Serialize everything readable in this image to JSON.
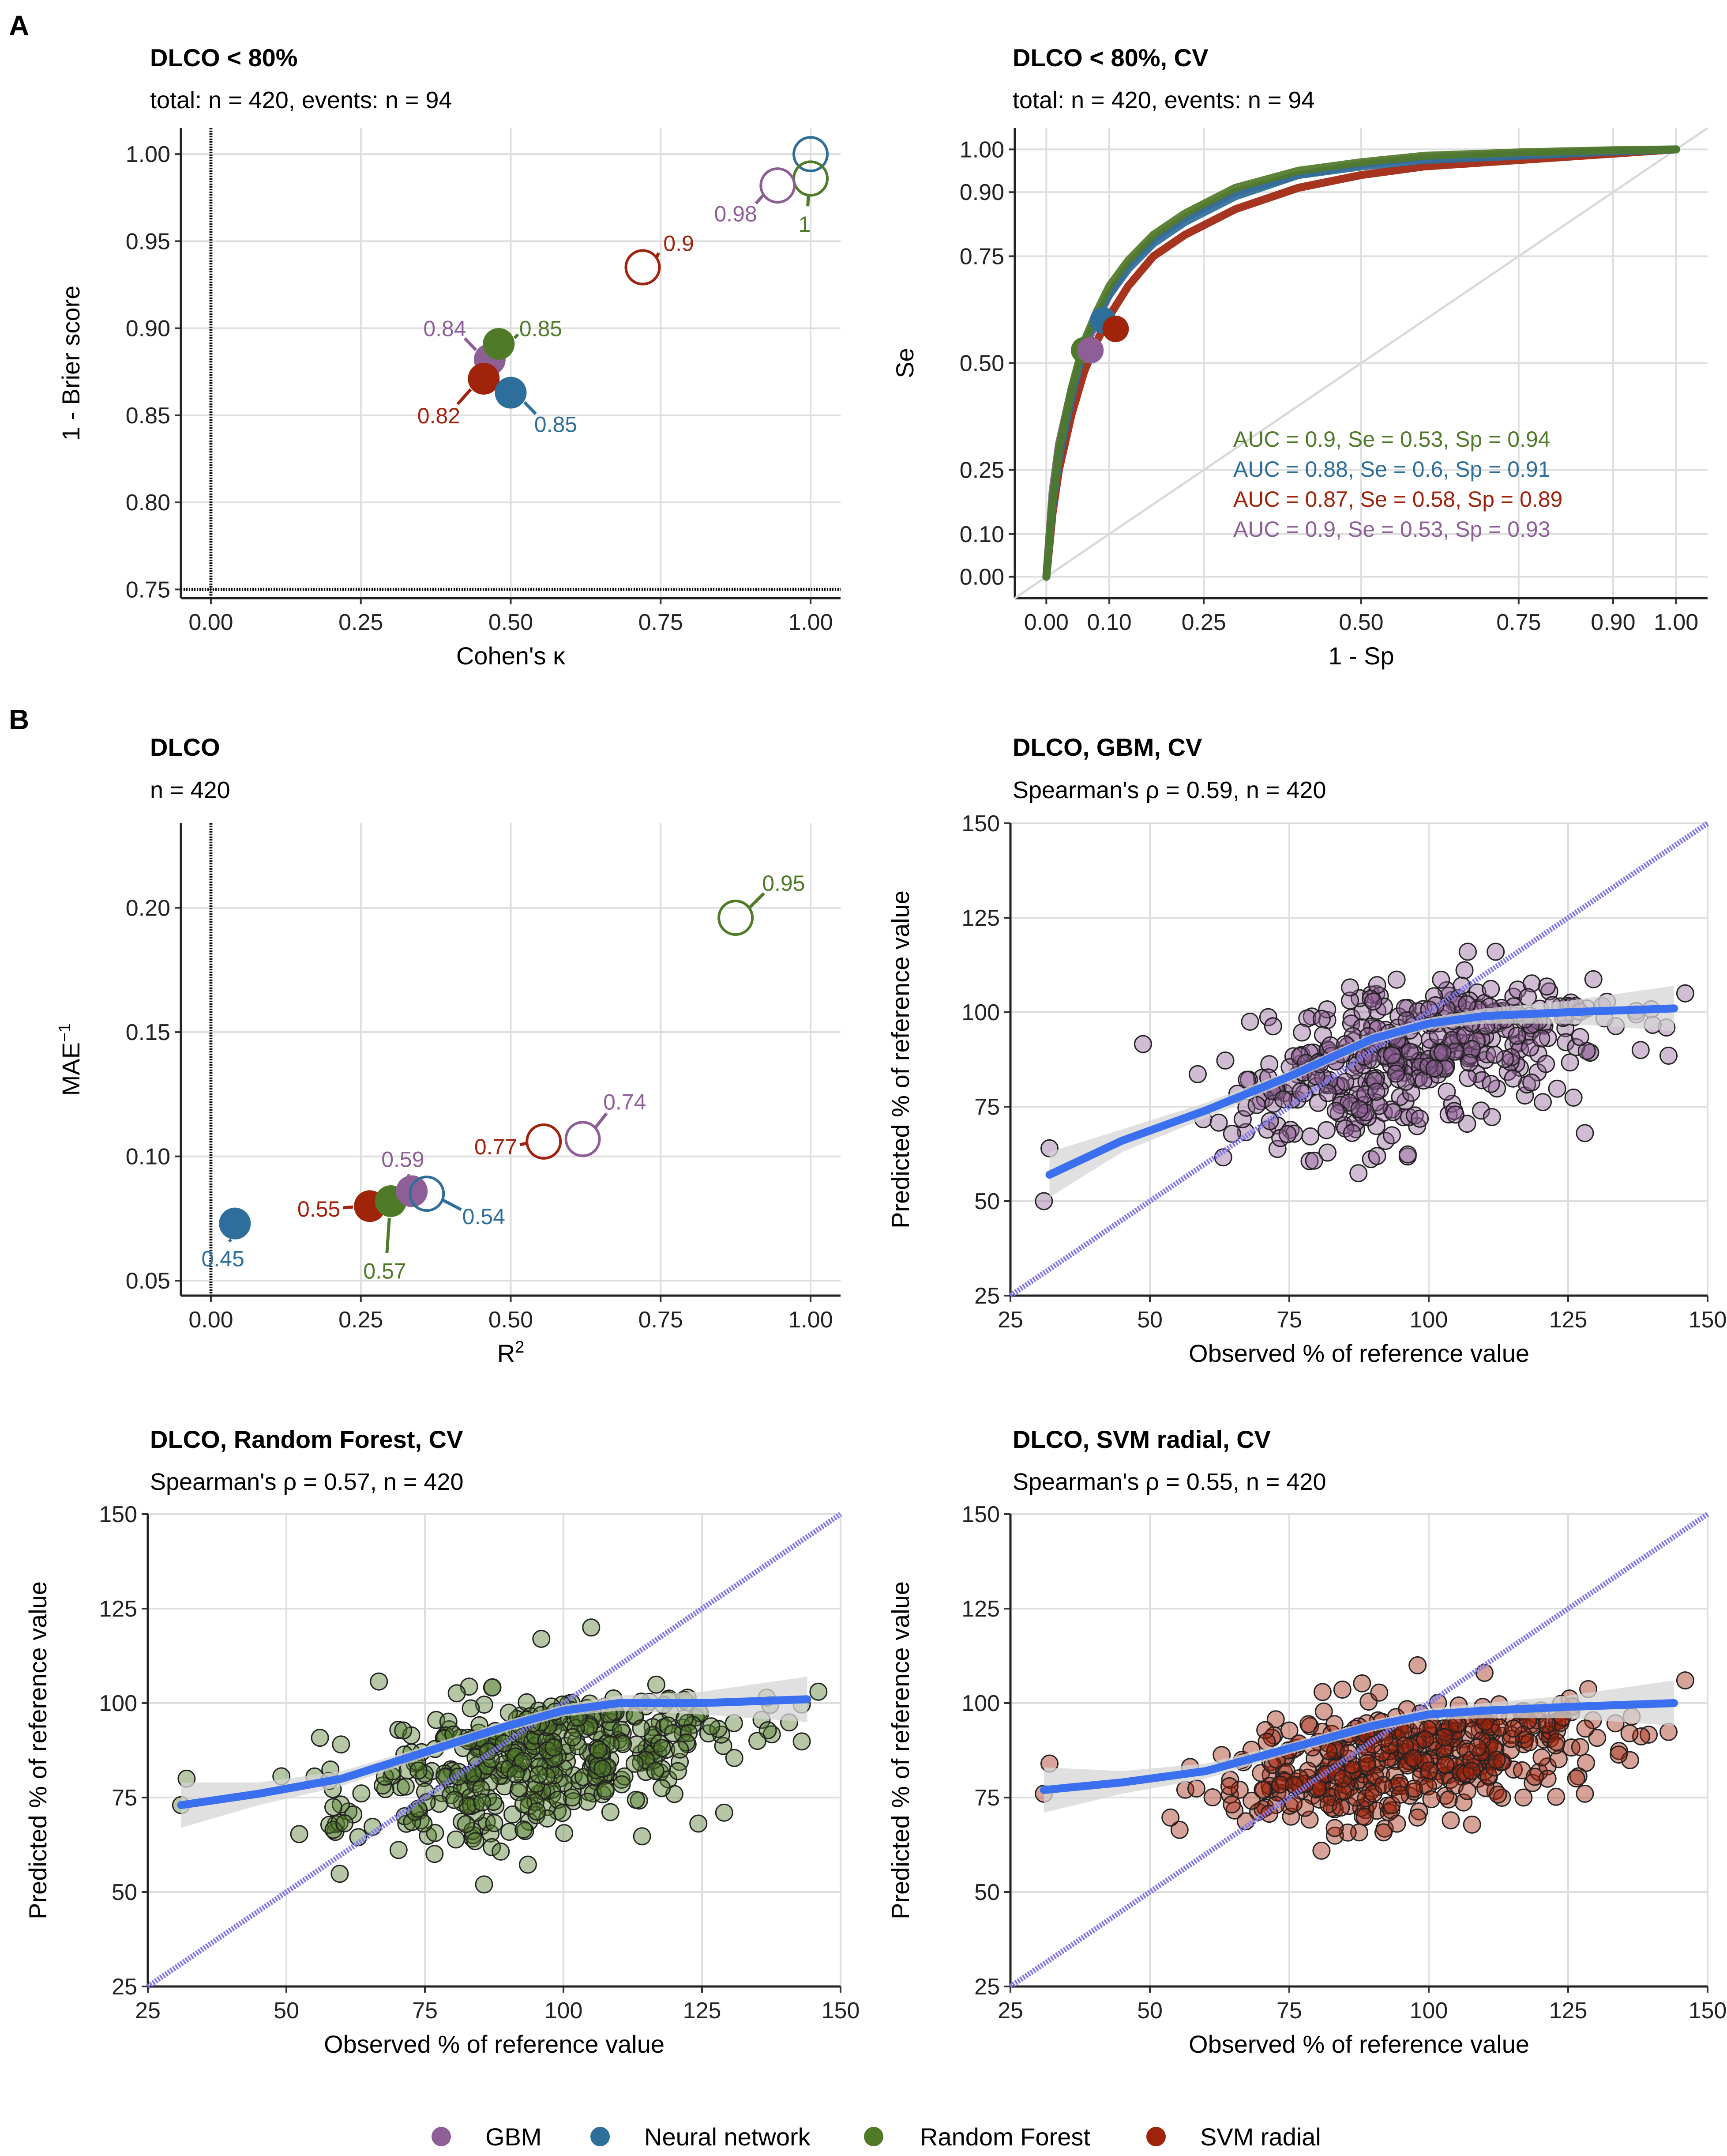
{
  "colors": {
    "GBM": "#8e5f97",
    "Neural network": "#2e6e9a",
    "Random Forest": "#4f7a28",
    "SVM radial": "#a0230b",
    "smooth": "#3a6ff0",
    "identity": "#7f78e6",
    "ribbon": "#d6d6d6",
    "grid": "#dedede"
  },
  "panel_letters": [
    "A",
    "B"
  ],
  "legend": {
    "items": [
      "GBM",
      "Neural network",
      "Random Forest",
      "SVM radial"
    ]
  },
  "chart_data": [
    {
      "id": "a1",
      "type": "scatter",
      "title": "DLCO < 80%",
      "subtitle": "total: n = 420, events: n = 94",
      "xlabel": "Cohen's κ",
      "ylabel": "1 - Brier score",
      "xlim": [
        -0.05,
        1.05
      ],
      "ylim": [
        0.745,
        1.015
      ],
      "xticks": [
        0,
        0.25,
        0.5,
        0.75,
        1
      ],
      "xtick_labels": [
        "0.00",
        "0.25",
        "0.50",
        "0.75",
        "1.00"
      ],
      "yticks": [
        0.75,
        0.8,
        0.85,
        0.9,
        0.95,
        1
      ],
      "ytick_labels": [
        "0.75",
        "0.80",
        "0.85",
        "0.90",
        "0.95",
        "1.00"
      ],
      "ref_lines": {
        "x": 0,
        "y": 0.75
      },
      "points": [
        {
          "model": "GBM",
          "x": 0.465,
          "y": 0.882,
          "filled": true,
          "label": "0.84",
          "lx": 0.39,
          "ly": 0.9
        },
        {
          "model": "Random Forest",
          "x": 0.48,
          "y": 0.891,
          "filled": true,
          "label": "0.85",
          "lx": 0.55,
          "ly": 0.9
        },
        {
          "model": "SVM radial",
          "x": 0.455,
          "y": 0.871,
          "filled": true,
          "label": "0.82",
          "lx": 0.38,
          "ly": 0.85
        },
        {
          "model": "Neural network",
          "x": 0.5,
          "y": 0.863,
          "filled": true,
          "label": "0.85",
          "lx": 0.575,
          "ly": 0.845
        },
        {
          "model": "Neural network",
          "x": 1.0,
          "y": 1.0,
          "filled": false,
          "label": "",
          "lx": 1.0,
          "ly": 1.0
        },
        {
          "model": "Random Forest",
          "x": 1.0,
          "y": 0.986,
          "filled": false,
          "label": "1",
          "lx": 0.99,
          "ly": 0.96
        },
        {
          "model": "GBM",
          "x": 0.945,
          "y": 0.982,
          "filled": false,
          "label": "0.98",
          "lx": 0.875,
          "ly": 0.966
        },
        {
          "model": "SVM radial",
          "x": 0.72,
          "y": 0.935,
          "filled": false,
          "label": "0.9",
          "lx": 0.78,
          "ly": 0.949
        }
      ]
    },
    {
      "id": "a2",
      "type": "line",
      "title": "DLCO < 80%, CV",
      "subtitle": "total: n = 420, events: n = 94",
      "xlabel": "1 - Sp",
      "ylabel": "Se",
      "xlim": [
        -0.05,
        1.05
      ],
      "ylim": [
        -0.05,
        1.05
      ],
      "xticks": [
        0,
        0.1,
        0.25,
        0.5,
        0.75,
        0.9,
        1
      ],
      "xtick_labels": [
        "0.00",
        "0.10",
        "0.25",
        "0.50",
        "0.75",
        "0.90",
        "1.00"
      ],
      "yticks": [
        0,
        0.1,
        0.25,
        0.5,
        0.75,
        0.9,
        1
      ],
      "ytick_labels": [
        "0.00",
        "0.10",
        "0.25",
        "0.50",
        "0.75",
        "0.90",
        "1.00"
      ],
      "series": [
        {
          "name": "Random Forest",
          "x": [
            0,
            0.01,
            0.02,
            0.04,
            0.06,
            0.08,
            0.1,
            0.13,
            0.17,
            0.22,
            0.3,
            0.4,
            0.5,
            0.6,
            0.75,
            0.9,
            1
          ],
          "y": [
            0,
            0.18,
            0.3,
            0.44,
            0.55,
            0.62,
            0.68,
            0.74,
            0.8,
            0.85,
            0.91,
            0.95,
            0.97,
            0.985,
            0.993,
            0.998,
            1
          ]
        },
        {
          "name": "Neural network",
          "x": [
            0,
            0.01,
            0.02,
            0.04,
            0.06,
            0.08,
            0.1,
            0.13,
            0.17,
            0.22,
            0.3,
            0.4,
            0.5,
            0.6,
            0.75,
            0.9,
            1
          ],
          "y": [
            0,
            0.17,
            0.28,
            0.42,
            0.54,
            0.61,
            0.66,
            0.72,
            0.78,
            0.83,
            0.89,
            0.94,
            0.96,
            0.975,
            0.985,
            0.995,
            1
          ]
        },
        {
          "name": "GBM",
          "x": [
            0,
            0.01,
            0.02,
            0.04,
            0.06,
            0.08,
            0.1,
            0.13,
            0.17,
            0.22,
            0.3,
            0.4,
            0.5,
            0.6,
            0.75,
            0.9,
            1
          ],
          "y": [
            0,
            0.2,
            0.31,
            0.44,
            0.53,
            0.6,
            0.66,
            0.73,
            0.79,
            0.84,
            0.9,
            0.94,
            0.965,
            0.98,
            0.99,
            0.996,
            1
          ]
        },
        {
          "name": "SVM radial",
          "x": [
            0,
            0.01,
            0.02,
            0.04,
            0.06,
            0.08,
            0.1,
            0.13,
            0.17,
            0.22,
            0.3,
            0.4,
            0.5,
            0.6,
            0.75,
            0.9,
            1
          ],
          "y": [
            0,
            0.15,
            0.25,
            0.38,
            0.48,
            0.55,
            0.61,
            0.68,
            0.75,
            0.8,
            0.86,
            0.91,
            0.94,
            0.96,
            0.975,
            0.99,
            1
          ]
        }
      ],
      "operating_points": [
        {
          "model": "Random Forest",
          "x": 0.06,
          "y": 0.53
        },
        {
          "model": "Neural network",
          "x": 0.09,
          "y": 0.6
        },
        {
          "model": "SVM radial",
          "x": 0.11,
          "y": 0.58
        },
        {
          "model": "GBM",
          "x": 0.07,
          "y": 0.53
        }
      ],
      "annotations": [
        {
          "model": "Random Forest",
          "text": "AUC = 0.9, Se = 0.53, Sp = 0.94"
        },
        {
          "model": "Neural network",
          "text": "AUC = 0.88, Se = 0.6, Sp = 0.91"
        },
        {
          "model": "SVM radial",
          "text": "AUC = 0.87, Se = 0.58, Sp = 0.89"
        },
        {
          "model": "GBM",
          "text": "AUC = 0.9, Se = 0.53, Sp = 0.93"
        }
      ]
    },
    {
      "id": "b1",
      "type": "scatter",
      "title": "DLCO",
      "subtitle": "n = 420",
      "xlabel": "R",
      "xlabel_sup": "2",
      "ylabel": "MAE",
      "ylabel_sup": "−1",
      "xlim": [
        -0.05,
        1.05
      ],
      "ylim": [
        0.044,
        0.234
      ],
      "xticks": [
        0,
        0.25,
        0.5,
        0.75,
        1
      ],
      "xtick_labels": [
        "0.00",
        "0.25",
        "0.50",
        "0.75",
        "1.00"
      ],
      "yticks": [
        0.05,
        0.1,
        0.15,
        0.2
      ],
      "ytick_labels": [
        "0.05",
        "0.10",
        "0.15",
        "0.20"
      ],
      "ref_lines": {
        "x": 0
      },
      "points": [
        {
          "model": "Neural network",
          "x": 0.04,
          "y": 0.073,
          "filled": true,
          "label": "0.45",
          "lx": 0.02,
          "ly": 0.059
        },
        {
          "model": "SVM radial",
          "x": 0.265,
          "y": 0.08,
          "filled": true,
          "label": "0.55",
          "lx": 0.18,
          "ly": 0.079
        },
        {
          "model": "Random Forest",
          "x": 0.3,
          "y": 0.082,
          "filled": true,
          "label": "0.57",
          "lx": 0.29,
          "ly": 0.054
        },
        {
          "model": "GBM",
          "x": 0.335,
          "y": 0.086,
          "filled": true,
          "label": "0.59",
          "lx": 0.32,
          "ly": 0.099
        },
        {
          "model": "Neural network",
          "x": 0.36,
          "y": 0.085,
          "filled": false,
          "label": "0.54",
          "lx": 0.455,
          "ly": 0.076
        },
        {
          "model": "SVM radial",
          "x": 0.555,
          "y": 0.106,
          "filled": false,
          "label": "0.77",
          "lx": 0.475,
          "ly": 0.104
        },
        {
          "model": "GBM",
          "x": 0.62,
          "y": 0.107,
          "filled": false,
          "label": "0.74",
          "lx": 0.69,
          "ly": 0.122
        },
        {
          "model": "Random Forest",
          "x": 0.875,
          "y": 0.196,
          "filled": false,
          "label": "0.95",
          "lx": 0.955,
          "ly": 0.21
        }
      ]
    },
    {
      "id": "b2",
      "type": "scatter",
      "model": "GBM",
      "title": "DLCO, GBM, CV",
      "subtitle": "Spearman's ρ = 0.59, n = 420",
      "rho": 0.59,
      "n": 420,
      "sample_seed": 7,
      "slope": 0.33,
      "intercept": 73,
      "yspread": 10,
      "xlabel": "Observed % of reference value",
      "ylabel": "Predicted % of reference value",
      "xlim": [
        25,
        150
      ],
      "ylim": [
        25,
        150
      ],
      "ticks": [
        25,
        50,
        75,
        100,
        125,
        150
      ],
      "smooth": {
        "x": [
          32,
          45,
          60,
          75,
          90,
          100,
          110,
          125,
          144
        ],
        "y": [
          57,
          66,
          74,
          83,
          93,
          97,
          99,
          100,
          101
        ]
      },
      "ribbon": [
        6,
        3,
        2,
        1.5,
        1.5,
        1.5,
        2,
        3,
        6
      ],
      "outliers": [
        [
          31,
          50
        ],
        [
          32,
          64
        ],
        [
          128,
          68
        ],
        [
          138,
          90
        ],
        [
          146,
          105
        ],
        [
          112,
          116
        ],
        [
          107,
          116
        ]
      ]
    },
    {
      "id": "b3",
      "type": "scatter",
      "model": "Random Forest",
      "title": "DLCO, Random Forest, CV",
      "subtitle": "Spearman's ρ = 0.57, n = 420",
      "rho": 0.57,
      "n": 420,
      "sample_seed": 11,
      "slope": 0.28,
      "intercept": 72,
      "yspread": 10,
      "xlabel": "Observed % of reference value",
      "ylabel": "Predicted % of reference value",
      "xlim": [
        25,
        150
      ],
      "ylim": [
        25,
        150
      ],
      "ticks": [
        25,
        50,
        75,
        100,
        125,
        150
      ],
      "smooth": {
        "x": [
          31,
          45,
          60,
          75,
          90,
          100,
          110,
          125,
          144
        ],
        "y": [
          73,
          76,
          80,
          87,
          94,
          98,
          100,
          100,
          101
        ]
      },
      "ribbon": [
        6,
        3,
        2,
        1.5,
        1.5,
        1.5,
        2,
        3,
        6
      ],
      "outliers": [
        [
          31,
          73
        ],
        [
          32,
          80
        ],
        [
          129,
          71
        ],
        [
          135,
          90
        ],
        [
          146,
          103
        ],
        [
          105,
          120
        ],
        [
          96,
          117
        ]
      ]
    },
    {
      "id": "b4",
      "type": "scatter",
      "model": "SVM radial",
      "title": "DLCO, SVM radial, CV",
      "subtitle": "Spearman's ρ = 0.55, n = 420",
      "rho": 0.55,
      "n": 420,
      "sample_seed": 19,
      "slope": 0.22,
      "intercept": 75,
      "yspread": 8,
      "xlabel": "Observed % of reference value",
      "ylabel": "Predicted % of reference value",
      "xlim": [
        25,
        150
      ],
      "ylim": [
        25,
        150
      ],
      "ticks": [
        25,
        50,
        75,
        100,
        125,
        150
      ],
      "smooth": {
        "x": [
          31,
          45,
          60,
          75,
          90,
          100,
          110,
          125,
          144
        ],
        "y": [
          77,
          79,
          82,
          88,
          94,
          97,
          98,
          99,
          100
        ]
      },
      "ribbon": [
        6,
        3,
        2,
        1.5,
        1.5,
        1.5,
        2,
        3,
        6
      ],
      "outliers": [
        [
          31,
          76
        ],
        [
          32,
          84
        ],
        [
          128,
          76
        ],
        [
          136,
          92
        ],
        [
          146,
          106
        ],
        [
          98,
          110
        ],
        [
          110,
          108
        ]
      ]
    }
  ]
}
